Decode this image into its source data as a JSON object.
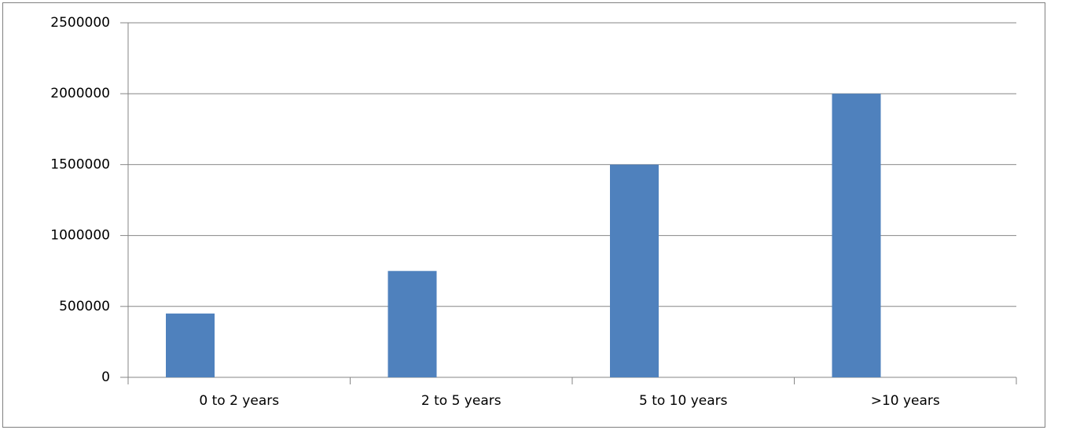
{
  "chart_data": {
    "type": "bar",
    "categories": [
      "0 to 2 years",
      "2 to 5 years",
      "5 to 10 years",
      ">10 years"
    ],
    "values": [
      450000,
      750000,
      1500000,
      2000000
    ],
    "color": "#4f81bd",
    "ylim": [
      0,
      2500000
    ],
    "yticks": [
      0,
      500000,
      1000000,
      1500000,
      2000000,
      2500000
    ],
    "grid": true
  }
}
